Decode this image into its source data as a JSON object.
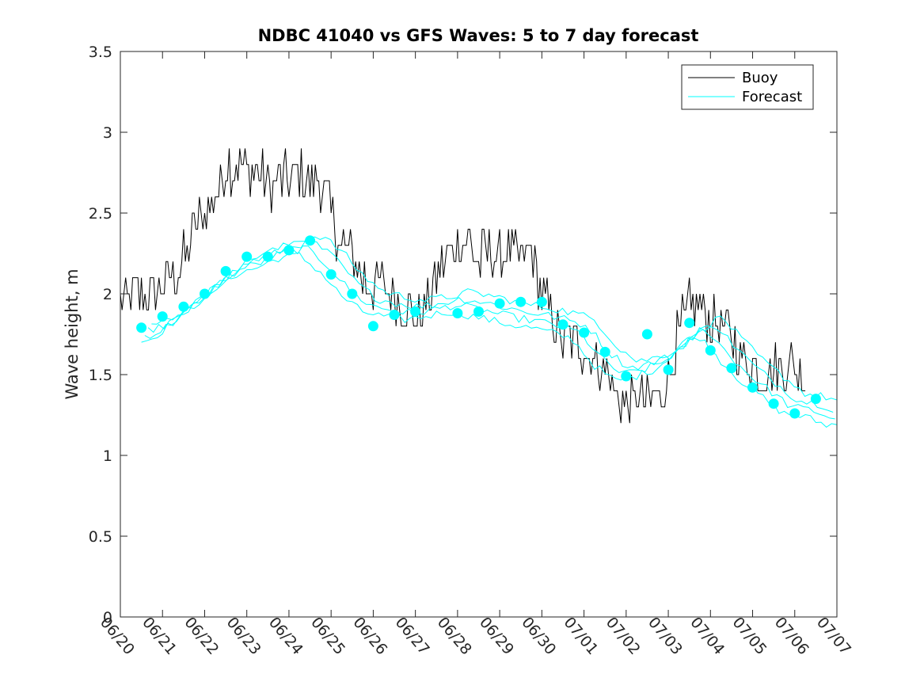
{
  "chart_data": {
    "type": "line",
    "title": "NDBC 41040 vs GFS Waves: 5 to 7 day forecast",
    "xlabel": "",
    "ylabel": "Wave height, m",
    "ylim": [
      0,
      3.5
    ],
    "yticks": [
      0,
      0.5,
      1,
      1.5,
      2,
      2.5,
      3,
      3.5
    ],
    "ytick_labels": [
      "0",
      "0.5",
      "1",
      "1.5",
      "2",
      "2.5",
      "3",
      "3.5"
    ],
    "xlim": [
      "06/20",
      "07/07"
    ],
    "xtick_labels": [
      "06/20",
      "06/21",
      "06/22",
      "06/23",
      "06/24",
      "06/25",
      "06/26",
      "06/27",
      "06/28",
      "06/29",
      "06/30",
      "07/01",
      "07/02",
      "07/03",
      "07/04",
      "07/05",
      "07/06",
      "07/07"
    ],
    "grid": false,
    "legend_position": "top-right",
    "colors": {
      "buoy": "#000000",
      "forecast": "#00FFFF",
      "axes": "#262626"
    },
    "series": [
      {
        "name": "Buoy",
        "style": "line",
        "x": [
          "06/20 00:00",
          "06/20 06:00",
          "06/20 12:00",
          "06/20 18:00",
          "06/21 00:00",
          "06/21 06:00",
          "06/21 12:00",
          "06/21 18:00",
          "06/22 00:00",
          "06/22 06:00",
          "06/22 12:00",
          "06/22 18:00",
          "06/23 00:00",
          "06/23 06:00",
          "06/23 12:00",
          "06/23 18:00",
          "06/24 00:00",
          "06/24 06:00",
          "06/24 12:00",
          "06/24 18:00",
          "06/25 00:00",
          "06/25 06:00",
          "06/25 12:00",
          "06/25 18:00",
          "06/26 00:00",
          "06/26 06:00",
          "06/26 12:00",
          "06/26 18:00",
          "06/27 00:00",
          "06/27 06:00",
          "06/27 12:00",
          "06/27 18:00",
          "06/28 00:00",
          "06/28 06:00",
          "06/28 12:00",
          "06/28 18:00",
          "06/29 00:00",
          "06/29 06:00",
          "06/29 12:00",
          "06/29 18:00",
          "06/30 00:00",
          "06/30 06:00",
          "06/30 12:00",
          "06/30 18:00",
          "07/01 00:00",
          "07/01 06:00",
          "07/01 12:00",
          "07/01 18:00",
          "07/02 00:00",
          "07/02 06:00",
          "07/02 12:00",
          "07/02 18:00",
          "07/03 00:00",
          "07/03 06:00",
          "07/03 12:00",
          "07/03 18:00",
          "07/04 00:00",
          "07/04 06:00",
          "07/04 12:00",
          "07/04 18:00",
          "07/05 00:00",
          "07/05 06:00",
          "07/05 12:00",
          "07/05 18:00",
          "07/06 00:00",
          "07/06 06:00"
        ],
        "y": [
          1.95,
          2.0,
          2.0,
          1.95,
          2.05,
          2.1,
          2.2,
          2.4,
          2.5,
          2.6,
          2.8,
          2.8,
          2.75,
          2.75,
          2.7,
          2.7,
          2.7,
          2.75,
          2.7,
          2.7,
          2.5,
          2.3,
          2.25,
          2.1,
          2.05,
          2.05,
          2.0,
          1.95,
          1.85,
          1.9,
          2.1,
          2.25,
          2.3,
          2.35,
          2.2,
          2.25,
          2.2,
          2.3,
          2.2,
          2.25,
          2.0,
          1.85,
          1.7,
          1.7,
          1.65,
          1.6,
          1.55,
          1.4,
          1.3,
          1.35,
          1.35,
          1.35,
          1.5,
          1.75,
          1.9,
          1.9,
          1.85,
          1.8,
          1.75,
          1.6,
          1.55,
          1.5,
          1.55,
          1.55,
          1.55,
          1.5
        ]
      },
      {
        "name": "Forecast",
        "style": "line",
        "x": [
          "06/20 12:00",
          "06/21 00:00",
          "06/21 12:00",
          "06/22 00:00",
          "06/22 12:00",
          "06/23 00:00",
          "06/23 12:00",
          "06/24 00:00",
          "06/24 12:00",
          "06/25 00:00",
          "06/25 12:00",
          "06/26 00:00",
          "06/26 12:00",
          "06/27 00:00",
          "06/27 12:00",
          "06/28 00:00",
          "06/28 12:00",
          "06/29 00:00",
          "06/29 12:00",
          "06/30 00:00",
          "06/30 12:00",
          "07/01 00:00",
          "07/01 12:00",
          "07/02 00:00",
          "07/02 12:00",
          "07/03 00:00",
          "07/03 12:00",
          "07/04 00:00",
          "07/04 12:00",
          "07/05 00:00",
          "07/05 12:00",
          "07/06 00:00",
          "07/06 12:00",
          "07/07 00:00"
        ],
        "y": [
          1.75,
          1.78,
          1.88,
          1.98,
          2.1,
          2.18,
          2.22,
          2.28,
          2.3,
          2.2,
          2.05,
          1.95,
          1.92,
          1.9,
          1.92,
          1.95,
          1.93,
          1.9,
          1.87,
          1.85,
          1.82,
          1.78,
          1.62,
          1.52,
          1.55,
          1.6,
          1.72,
          1.8,
          1.65,
          1.52,
          1.42,
          1.32,
          1.3,
          1.25
        ]
      },
      {
        "name": "Forecast",
        "style": "markers",
        "x": [
          "06/20 12:00",
          "06/21 00:00",
          "06/21 12:00",
          "06/22 00:00",
          "06/22 12:00",
          "06/23 00:00",
          "06/23 12:00",
          "06/24 00:00",
          "06/24 12:00",
          "06/25 00:00",
          "06/25 12:00",
          "06/26 00:00",
          "06/26 12:00",
          "06/27 00:00",
          "06/28 00:00",
          "06/28 12:00",
          "06/29 00:00",
          "06/29 12:00",
          "06/30 00:00",
          "06/30 12:00",
          "07/01 00:00",
          "07/01 12:00",
          "07/02 00:00",
          "07/02 12:00",
          "07/03 00:00",
          "07/03 12:00",
          "07/04 00:00",
          "07/04 12:00",
          "07/05 00:00",
          "07/05 12:00",
          "07/06 00:00",
          "07/06 12:00"
        ],
        "y": [
          1.79,
          1.86,
          1.92,
          2.0,
          2.14,
          2.23,
          2.23,
          2.27,
          2.33,
          2.12,
          2.0,
          1.8,
          1.87,
          1.89,
          1.88,
          1.89,
          1.94,
          1.95,
          1.95,
          1.81,
          1.76,
          1.64,
          1.49,
          1.75,
          1.53,
          1.82,
          1.65,
          1.54,
          1.42,
          1.32,
          1.26,
          1.35
        ]
      }
    ]
  }
}
